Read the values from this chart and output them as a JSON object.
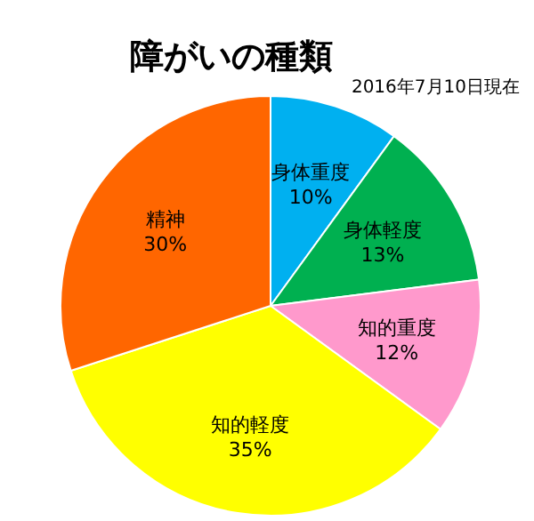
{
  "chart_data": {
    "type": "pie",
    "title": "障がいの種類",
    "subtitle": "2016年7月10日現在",
    "categories": [
      "身体重度",
      "身体軽度",
      "知的重度",
      "知的軽度",
      "精神"
    ],
    "values": [
      10,
      13,
      12,
      35,
      30
    ],
    "value_labels": [
      "10%",
      "13%",
      "12%",
      "35%",
      "30%"
    ],
    "colors": [
      "#00b0f0",
      "#00b050",
      "#ff99cc",
      "#ffff00",
      "#ff6600"
    ]
  }
}
